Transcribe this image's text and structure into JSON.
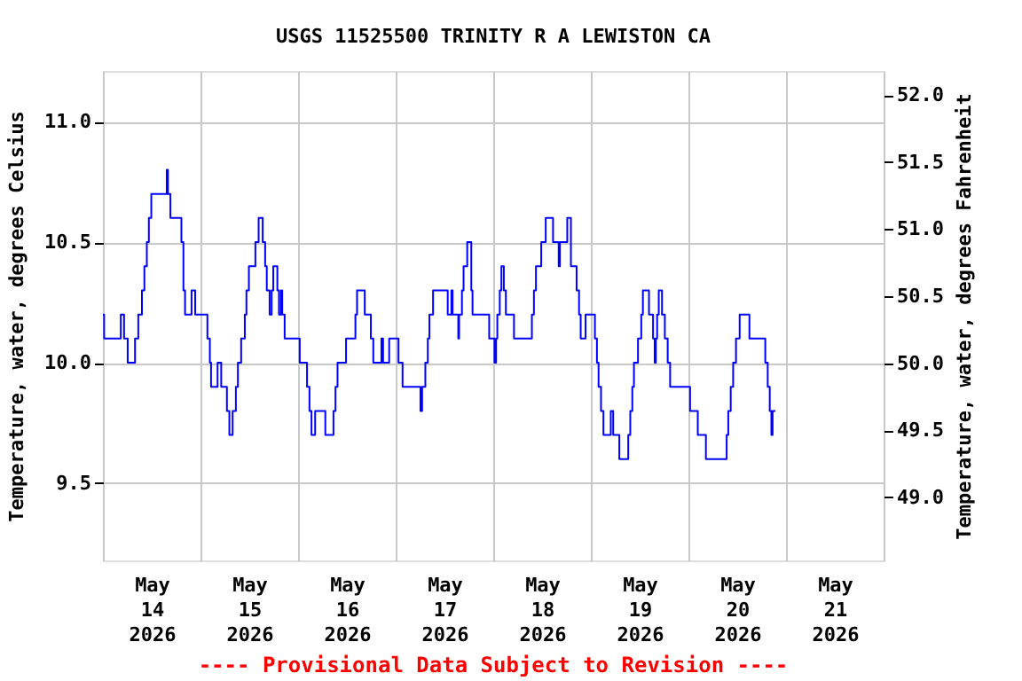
{
  "chart_data": {
    "type": "step",
    "title": "USGS 11525500 TRINITY R A LEWISTON CA",
    "ylabel": "Temperature, water, degrees Celsius",
    "y2label": "Temperature, water, degrees Fahrenheit",
    "annotations": [
      "---- Provisional Data Subject to Revision ----"
    ],
    "x": [
      "2026-05-14T00:00",
      "2026-05-14T00:18",
      "2026-05-14T04:24",
      "2026-05-14T05:12",
      "2026-05-14T06:06",
      "2026-05-14T07:54",
      "2026-05-14T08:42",
      "2026-05-14T09:36",
      "2026-05-14T10:12",
      "2026-05-14T10:48",
      "2026-05-14T11:18",
      "2026-05-14T11:54",
      "2026-05-14T15:42",
      "2026-05-14T16:00",
      "2026-05-14T16:36",
      "2026-05-14T19:18",
      "2026-05-14T19:48",
      "2026-05-14T20:12",
      "2026-05-14T21:48",
      "2026-05-14T22:42",
      "2026-05-15T01:42",
      "2026-05-15T02:18",
      "2026-05-15T02:36",
      "2026-05-15T04:12",
      "2026-05-15T05:06",
      "2026-05-15T06:30",
      "2026-05-15T07:06",
      "2026-05-15T07:54",
      "2026-05-15T08:42",
      "2026-05-15T09:12",
      "2026-05-15T10:00",
      "2026-05-15T10:54",
      "2026-05-15T11:18",
      "2026-05-15T11:54",
      "2026-05-15T13:30",
      "2026-05-15T14:18",
      "2026-05-15T15:18",
      "2026-05-15T15:54",
      "2026-05-15T16:18",
      "2026-05-15T17:00",
      "2026-05-15T17:30",
      "2026-05-15T17:54",
      "2026-05-15T18:54",
      "2026-05-15T19:18",
      "2026-05-15T19:48",
      "2026-05-15T20:06",
      "2026-05-15T20:42",
      "2026-05-16T00:24",
      "2026-05-16T02:12",
      "2026-05-16T02:48",
      "2026-05-16T03:18",
      "2026-05-16T04:12",
      "2026-05-16T06:42",
      "2026-05-16T08:42",
      "2026-05-16T09:12",
      "2026-05-16T09:42",
      "2026-05-16T11:48",
      "2026-05-16T14:06",
      "2026-05-16T14:30",
      "2026-05-16T16:24",
      "2026-05-16T17:54",
      "2026-05-16T18:30",
      "2026-05-16T20:30",
      "2026-05-16T20:54",
      "2026-05-16T22:24",
      "2026-05-17T00:42",
      "2026-05-17T01:42",
      "2026-05-17T06:06",
      "2026-05-17T06:30",
      "2026-05-17T07:18",
      "2026-05-17T07:54",
      "2026-05-17T08:18",
      "2026-05-17T09:12",
      "2026-05-17T12:48",
      "2026-05-17T13:42",
      "2026-05-17T14:00",
      "2026-05-17T15:24",
      "2026-05-17T15:36",
      "2026-05-17T16:18",
      "2026-05-17T16:42",
      "2026-05-17T17:36",
      "2026-05-17T18:36",
      "2026-05-17T18:54",
      "2026-05-17T23:00",
      "2026-05-18T00:18",
      "2026-05-18T00:42",
      "2026-05-18T01:00",
      "2026-05-18T01:36",
      "2026-05-18T02:00",
      "2026-05-18T02:36",
      "2026-05-18T03:06",
      "2026-05-18T05:06",
      "2026-05-18T09:30",
      "2026-05-18T10:00",
      "2026-05-18T10:30",
      "2026-05-18T11:48",
      "2026-05-18T12:54",
      "2026-05-18T14:42",
      "2026-05-18T16:06",
      "2026-05-18T16:24",
      "2026-05-18T18:12",
      "2026-05-18T19:06",
      "2026-05-18T20:30",
      "2026-05-18T21:06",
      "2026-05-18T21:30",
      "2026-05-18T22:42",
      "2026-05-19T01:00",
      "2026-05-19T01:30",
      "2026-05-19T01:54",
      "2026-05-19T02:30",
      "2026-05-19T03:06",
      "2026-05-19T04:54",
      "2026-05-19T05:30",
      "2026-05-19T07:00",
      "2026-05-19T09:12",
      "2026-05-19T09:42",
      "2026-05-19T10:12",
      "2026-05-19T10:36",
      "2026-05-19T11:36",
      "2026-05-19T12:24",
      "2026-05-19T12:48",
      "2026-05-19T14:18",
      "2026-05-19T15:18",
      "2026-05-19T15:42",
      "2026-05-19T16:00",
      "2026-05-19T16:18",
      "2026-05-19T16:42",
      "2026-05-19T17:30",
      "2026-05-19T18:12",
      "2026-05-19T18:54",
      "2026-05-19T19:30",
      "2026-05-20T00:24",
      "2026-05-20T02:18",
      "2026-05-20T04:18",
      "2026-05-20T09:24",
      "2026-05-20T09:48",
      "2026-05-20T10:24",
      "2026-05-20T11:00",
      "2026-05-20T11:42",
      "2026-05-20T12:36",
      "2026-05-20T15:00",
      "2026-05-20T18:54",
      "2026-05-20T19:30",
      "2026-05-20T20:00",
      "2026-05-20T20:24",
      "2026-05-20T20:42",
      "2026-05-20T21:24"
    ],
    "series": [
      {
        "color": "#0000ff",
        "values": [
          10.2,
          10.1,
          10.2,
          10.1,
          10.0,
          10.1,
          10.2,
          10.3,
          10.4,
          10.5,
          10.6,
          10.7,
          10.8,
          10.7,
          10.6,
          10.5,
          10.3,
          10.2,
          10.3,
          10.2,
          10.1,
          10.0,
          9.9,
          10.0,
          9.9,
          9.8,
          9.7,
          9.8,
          9.9,
          10.0,
          10.1,
          10.2,
          10.3,
          10.4,
          10.5,
          10.6,
          10.5,
          10.4,
          10.3,
          10.2,
          10.3,
          10.4,
          10.3,
          10.2,
          10.3,
          10.2,
          10.1,
          10.0,
          9.9,
          9.8,
          9.7,
          9.8,
          9.7,
          9.8,
          9.9,
          10.0,
          10.1,
          10.2,
          10.3,
          10.2,
          10.1,
          10.0,
          10.1,
          10.0,
          10.1,
          10.0,
          9.9,
          9.8,
          9.9,
          10.0,
          10.1,
          10.2,
          10.3,
          10.2,
          10.3,
          10.2,
          10.1,
          10.2,
          10.3,
          10.4,
          10.5,
          10.3,
          10.2,
          10.1,
          10.0,
          10.1,
          10.2,
          10.3,
          10.4,
          10.3,
          10.2,
          10.1,
          10.2,
          10.3,
          10.4,
          10.5,
          10.6,
          10.5,
          10.4,
          10.5,
          10.6,
          10.4,
          10.3,
          10.2,
          10.1,
          10.2,
          10.1,
          10.0,
          9.9,
          9.8,
          9.7,
          9.8,
          9.7,
          9.6,
          9.7,
          9.8,
          9.9,
          10.0,
          10.1,
          10.2,
          10.3,
          10.2,
          10.1,
          10.0,
          10.1,
          10.2,
          10.3,
          10.2,
          10.1,
          10.0,
          9.9,
          9.8,
          9.7,
          9.6,
          9.7,
          9.8,
          9.9,
          10.0,
          10.1,
          10.2,
          10.1,
          10.0,
          9.9,
          9.8,
          9.7,
          9.8,
          9.8
        ]
      }
    ],
    "xlim": [
      "2026-05-14",
      "2026-05-22"
    ],
    "xticks": [
      {
        "value": "2026-05-14",
        "label": null
      },
      {
        "value": "2026-05-14T12:00",
        "label": "May\n14\n2026"
      },
      {
        "value": "2026-05-15",
        "label": null
      },
      {
        "value": "2026-05-15T12:00",
        "label": "May\n15\n2026"
      },
      {
        "value": "2026-05-16",
        "label": null
      },
      {
        "value": "2026-05-16T12:00",
        "label": "May\n16\n2026"
      },
      {
        "value": "2026-05-17",
        "label": null
      },
      {
        "value": "2026-05-17T12:00",
        "label": "May\n17\n2026"
      },
      {
        "value": "2026-05-18",
        "label": null
      },
      {
        "value": "2026-05-18T12:00",
        "label": "May\n18\n2026"
      },
      {
        "value": "2026-05-19",
        "label": null
      },
      {
        "value": "2026-05-19T12:00",
        "label": "May\n19\n2026"
      },
      {
        "value": "2026-05-20",
        "label": null
      },
      {
        "value": "2026-05-20T12:00",
        "label": "May\n20\n2026"
      },
      {
        "value": "2026-05-21",
        "label": null
      },
      {
        "value": "2026-05-21T12:00",
        "label": "May\n21\n2026"
      },
      {
        "value": "2026-05-22",
        "label": null
      }
    ],
    "ylim": [
      9.18,
      11.21
    ],
    "yticks": [
      9.5,
      {
        "value": 10,
        "label": "10.0"
      },
      10.5,
      {
        "value": 11,
        "label": "11.0"
      }
    ],
    "y2lim": [
      48.53,
      52.18
    ],
    "y2ticks": [
      {
        "value": 49,
        "label": "49.0"
      },
      49.5,
      {
        "value": 50,
        "label": "50.0"
      },
      50.5,
      {
        "value": 51,
        "label": "51.0"
      },
      51.5,
      {
        "value": 52,
        "label": "52.0"
      }
    ],
    "grid": true
  }
}
